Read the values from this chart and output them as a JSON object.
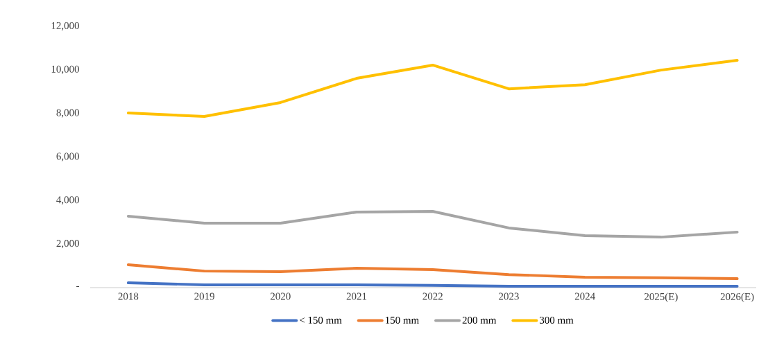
{
  "chart_data": {
    "type": "line",
    "categories": [
      "2018",
      "2019",
      "2020",
      "2021",
      "2022",
      "2023",
      "2024",
      "2025(E)",
      "2026(E)"
    ],
    "series": [
      {
        "name": "< 150 mm",
        "color": "#4472c4",
        "values": [
          220,
          130,
          130,
          130,
          100,
          60,
          60,
          60,
          60
        ]
      },
      {
        "name": "150 mm",
        "color": "#ed7d31",
        "values": [
          1050,
          760,
          730,
          890,
          830,
          600,
          480,
          450,
          410
        ]
      },
      {
        "name": "200 mm",
        "color": "#a5a5a5",
        "values": [
          3280,
          2960,
          2960,
          3470,
          3500,
          2740,
          2390,
          2320,
          2550
        ]
      },
      {
        "name": "300 mm",
        "color": "#ffc000",
        "values": [
          8020,
          7860,
          8500,
          9610,
          10220,
          9130,
          9320,
          9990,
          10440
        ]
      }
    ],
    "ylim": [
      0,
      12000
    ],
    "yticks": [
      {
        "value": 0,
        "label": "-"
      },
      {
        "value": 2000,
        "label": "2,000"
      },
      {
        "value": 4000,
        "label": "4,000"
      },
      {
        "value": 6000,
        "label": "6,000"
      },
      {
        "value": 8000,
        "label": "8,000"
      },
      {
        "value": 10000,
        "label": "10,000"
      },
      {
        "value": 12000,
        "label": "12,000"
      }
    ],
    "legend": "bottom",
    "grid": false,
    "line_style": "solid"
  }
}
